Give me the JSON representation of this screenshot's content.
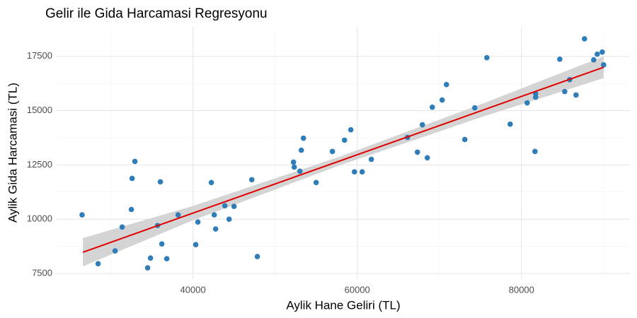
{
  "chart_data": {
    "type": "scatter",
    "title": "Gelir ile Gida Harcamasi Regresyonu",
    "x_label": "Aylik Hane Geliri (TL)",
    "y_label": "Aylik Gida Harcamasi (TL)",
    "color": "#2e7db8",
    "x": [
      26500,
      28450,
      30520,
      31380,
      32500,
      32590,
      32930,
      34480,
      34830,
      35690,
      36030,
      36210,
      36810,
      38190,
      40340,
      40600,
      42240,
      42590,
      42760,
      43880,
      44400,
      45000,
      47160,
      47840,
      52240,
      52330,
      53020,
      53190,
      53450,
      55000,
      56980,
      58450,
      59220,
      59660,
      60600,
      61720,
      66120,
      67330,
      67930,
      68530,
      69140,
      70340,
      70860,
      73100,
      74310,
      75780,
      78620,
      80690,
      81640,
      81720,
      81720,
      84660,
      85260,
      85860,
      86640,
      87670,
      88790,
      89220,
      89830,
      90000
    ],
    "y": [
      10200,
      7950,
      8540,
      9640,
      10450,
      11880,
      12660,
      7760,
      8210,
      9710,
      11720,
      8860,
      8180,
      10200,
      8830,
      9870,
      11690,
      10200,
      9550,
      10620,
      10000,
      10590,
      11820,
      8280,
      12630,
      12400,
      12210,
      13180,
      13730,
      11690,
      13120,
      13640,
      14120,
      12180,
      12180,
      12760,
      13770,
      13090,
      14350,
      12830,
      15160,
      15490,
      16200,
      13670,
      15130,
      17440,
      14380,
      15360,
      13120,
      15620,
      15780,
      17370,
      15880,
      16430,
      15720,
      18310,
      17340,
      17600,
      17700,
      17110
    ],
    "regression": {
      "x": [
        26600,
        40000,
        58000,
        75000,
        90000
      ],
      "fit": [
        8480,
        10281,
        12700,
        14985,
        17000
      ],
      "lower": [
        7830,
        9950,
        12500,
        14685,
        16500
      ],
      "upper": [
        9130,
        10610,
        12900,
        15285,
        17500
      ],
      "color": "#e00000",
      "band_color": "#d4d4d4"
    },
    "xlim": [
      23400,
      93200
    ],
    "ylim": [
      7240,
      18860
    ],
    "xticks": [
      40000,
      60000,
      80000
    ],
    "yticks": [
      7500,
      10000,
      12500,
      15000,
      17500
    ],
    "x_minor_grid": [
      30000,
      50000,
      70000,
      90000
    ],
    "y_minor_grid": [
      8750,
      11250,
      13750,
      16250
    ],
    "grid": true
  }
}
